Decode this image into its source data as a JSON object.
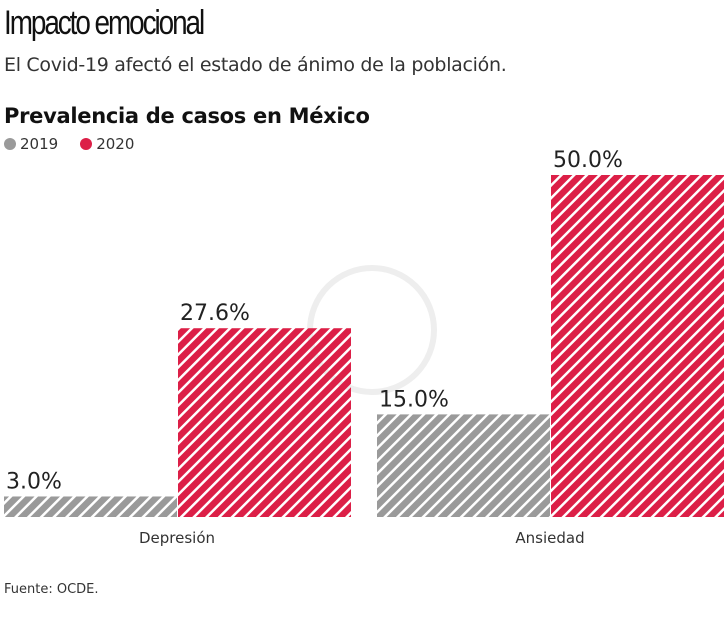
{
  "header": {
    "title": "Impacto emocional",
    "subtitle": "El Covid-19 afectó el estado de ánimo de la población."
  },
  "footer": {
    "source": "Fuente: OCDE."
  },
  "colors": {
    "2019": "#9a9a9a",
    "2020": "#dc1f47"
  },
  "chart_data": {
    "type": "bar",
    "title": "Prevalencia de casos en México",
    "categories": [
      "Depresión",
      "Ansiedad"
    ],
    "series": [
      {
        "name": "2019",
        "values": [
          3.0,
          15.0
        ],
        "labels": [
          "3.0%",
          "15.0%"
        ]
      },
      {
        "name": "2020",
        "values": [
          27.6,
          50.0
        ],
        "labels": [
          "27.6%",
          "50.0%"
        ]
      }
    ],
    "ylim": [
      0,
      50
    ],
    "grid": false,
    "legend_position": "top-left",
    "fill": "diagonal-hatch"
  }
}
